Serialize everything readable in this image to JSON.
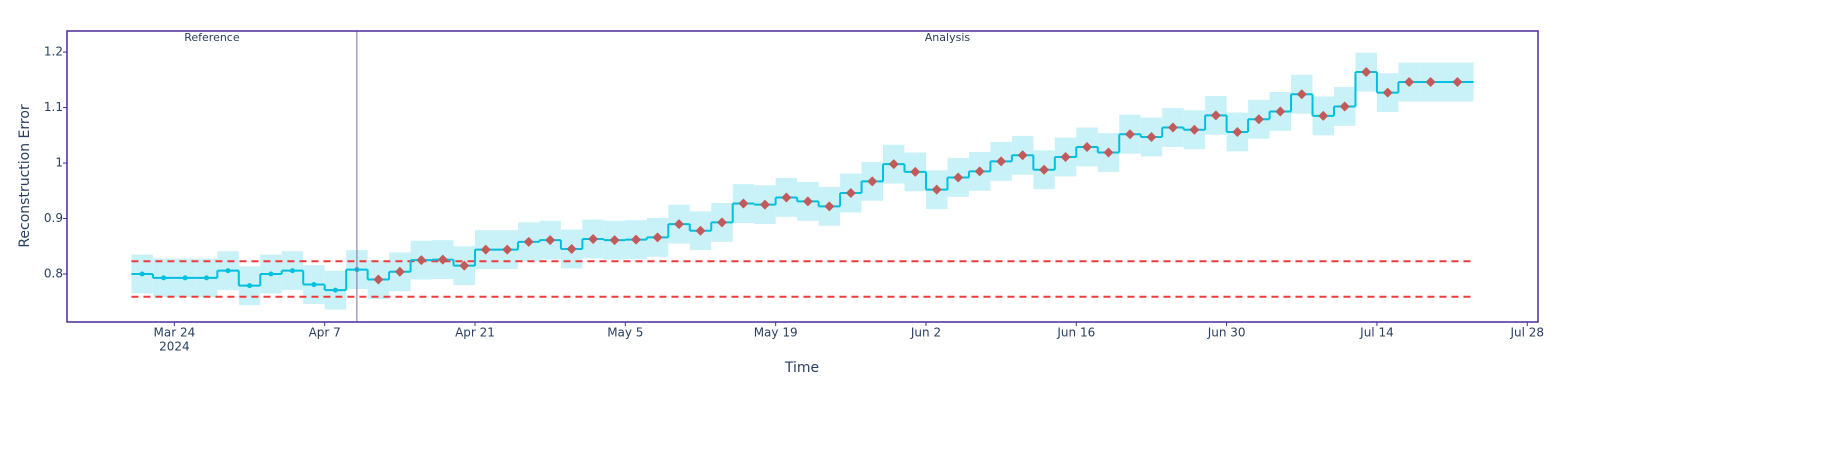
{
  "chart_data": {
    "type": "step",
    "x_label": "Time",
    "y_label": "Reconstruction Error",
    "periods": [
      {
        "name": "Reference",
        "start": "2024-03-20",
        "end": "2024-04-10"
      },
      {
        "name": "Analysis",
        "start": "2024-04-10",
        "end": "2024-07-23"
      }
    ],
    "x": [
      "2024-03-20",
      "2024-03-22",
      "2024-03-24",
      "2024-03-26",
      "2024-03-28",
      "2024-03-30",
      "2024-04-01",
      "2024-04-03",
      "2024-04-05",
      "2024-04-07",
      "2024-04-09",
      "2024-04-11",
      "2024-04-13",
      "2024-04-15",
      "2024-04-17",
      "2024-04-19",
      "2024-04-21",
      "2024-04-23",
      "2024-04-25",
      "2024-04-27",
      "2024-04-29",
      "2024-05-01",
      "2024-05-03",
      "2024-05-05",
      "2024-05-07",
      "2024-05-09",
      "2024-05-11",
      "2024-05-13",
      "2024-05-15",
      "2024-05-17",
      "2024-05-19",
      "2024-05-21",
      "2024-05-23",
      "2024-05-25",
      "2024-05-27",
      "2024-05-29",
      "2024-05-31",
      "2024-06-02",
      "2024-06-04",
      "2024-06-06",
      "2024-06-08",
      "2024-06-10",
      "2024-06-12",
      "2024-06-14",
      "2024-06-16",
      "2024-06-18",
      "2024-06-20",
      "2024-06-22",
      "2024-06-24",
      "2024-06-26",
      "2024-06-28",
      "2024-06-30",
      "2024-07-02",
      "2024-07-04",
      "2024-07-06",
      "2024-07-08",
      "2024-07-10",
      "2024-07-12",
      "2024-07-14",
      "2024-07-16",
      "2024-07-18",
      "2024-07-20"
    ],
    "values": [
      0.8,
      0.793,
      0.793,
      0.793,
      0.806,
      0.779,
      0.8,
      0.806,
      0.781,
      0.771,
      0.808,
      0.79,
      0.804,
      0.825,
      0.826,
      0.815,
      0.844,
      0.844,
      0.858,
      0.861,
      0.845,
      0.863,
      0.861,
      0.862,
      0.866,
      0.89,
      0.878,
      0.893,
      0.927,
      0.925,
      0.938,
      0.931,
      0.922,
      0.946,
      0.967,
      0.998,
      0.984,
      0.952,
      0.974,
      0.985,
      1.003,
      1.014,
      0.988,
      1.011,
      1.029,
      1.019,
      1.052,
      1.047,
      1.064,
      1.06,
      1.086,
      1.056,
      1.079,
      1.093,
      1.124,
      1.085,
      1.102,
      1.164,
      1.127,
      1.146,
      1.146,
      1.146
    ],
    "confidence_margin": 0.035,
    "line_color": "#00c0e0",
    "band_color": "#c9f1f8",
    "marker_color": "#c15b5b",
    "thresholds": [
      0.823,
      0.759
    ],
    "threshold_color": "#ef3b3b",
    "xlim": [
      "2024-03-14",
      "2024-07-29"
    ],
    "xticks": [
      {
        "value": "2024-03-24",
        "label": "Mar 24"
      },
      {
        "value": "2024-04-07",
        "label": "Apr 7"
      },
      {
        "value": "2024-04-21",
        "label": "Apr 21"
      },
      {
        "value": "2024-05-05",
        "label": "May 5"
      },
      {
        "value": "2024-05-19",
        "label": "May 19"
      },
      {
        "value": "2024-06-02",
        "label": "Jun 2"
      },
      {
        "value": "2024-06-16",
        "label": "Jun 16"
      },
      {
        "value": "2024-06-30",
        "label": "Jun 30"
      },
      {
        "value": "2024-07-14",
        "label": "Jul 14"
      },
      {
        "value": "2024-07-28",
        "label": "Jul 28"
      }
    ],
    "xtick_year": "2024",
    "ylim": [
      0.7135,
      1.238
    ],
    "yticks": [
      0.8,
      0.9,
      1,
      1.1,
      1.2
    ]
  }
}
